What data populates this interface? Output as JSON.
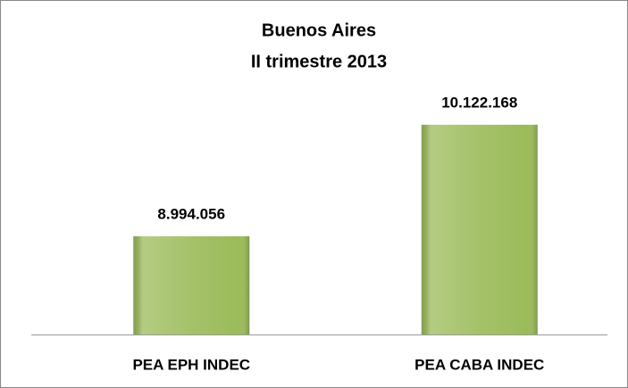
{
  "chart_data": {
    "type": "bar",
    "title": "Buenos Aires",
    "subtitle": "II trimestre 2013",
    "categories": [
      "PEA EPH INDEC",
      "PEA CABA INDEC"
    ],
    "values": [
      8994056,
      10122168
    ],
    "value_labels": [
      "8.994.056",
      "10.122.168"
    ],
    "color": "#9bbb59",
    "ylim": [
      8000000,
      10500000
    ]
  }
}
